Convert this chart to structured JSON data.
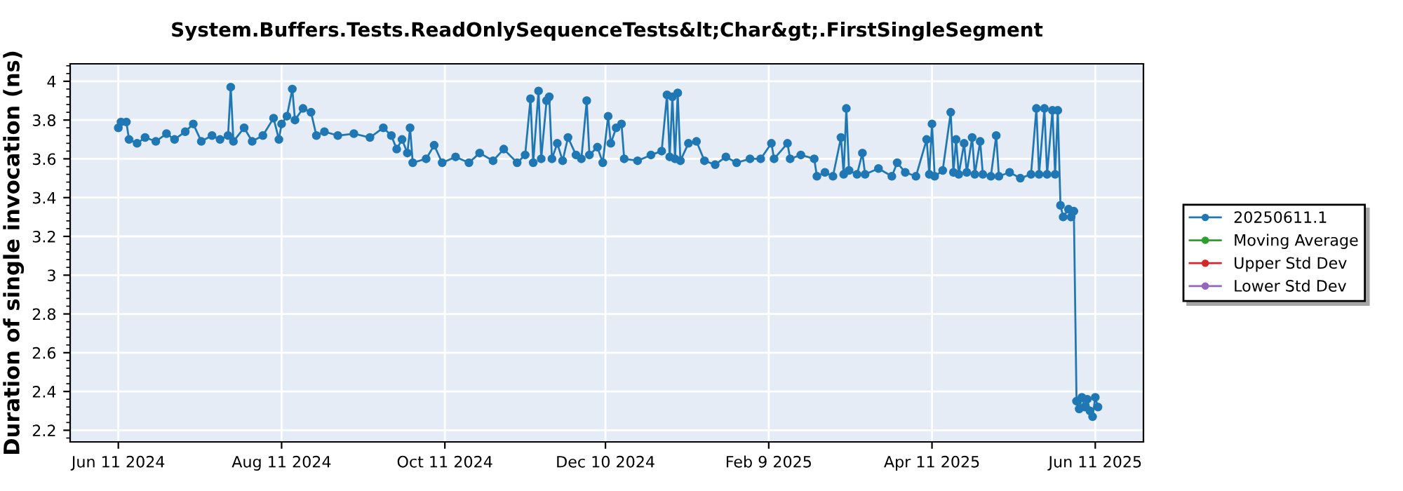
{
  "chart_data": {
    "type": "line",
    "title": "System.Buffers.Tests.ReadOnlySequenceTests&lt;Char&gt;.FirstSingleSegment",
    "ylabel": "Duration of single invocation (ns)",
    "xlim": [
      "2024-05-24",
      "2025-06-29"
    ],
    "xticks": [
      {
        "value": "2024-06-11",
        "label": "Jun 11 2024"
      },
      {
        "value": "2024-08-11",
        "label": "Aug 11 2024"
      },
      {
        "value": "2024-10-11",
        "label": "Oct 11 2024"
      },
      {
        "value": "2024-12-10",
        "label": "Dec 10 2024"
      },
      {
        "value": "2025-02-09",
        "label": "Feb 9 2025"
      },
      {
        "value": "2025-04-11",
        "label": "Apr 11 2025"
      },
      {
        "value": "2025-06-11",
        "label": "Jun 11 2025"
      }
    ],
    "ylim": [
      2.14,
      4.09
    ],
    "yticks": [
      2.2,
      2.4,
      2.6,
      2.8,
      3,
      3.2,
      3.4,
      3.6,
      3.8,
      4
    ],
    "grid": true,
    "legend": "right",
    "marker": "circle",
    "line_style": "solid",
    "series": [
      {
        "name": "20250611.1",
        "color": "#1f77b4",
        "x": [
          "2024-06-11",
          "2024-06-12",
          "2024-06-14",
          "2024-06-15",
          "2024-06-18",
          "2024-06-21",
          "2024-06-25",
          "2024-06-29",
          "2024-07-02",
          "2024-07-06",
          "2024-07-09",
          "2024-07-12",
          "2024-07-16",
          "2024-07-19",
          "2024-07-22",
          "2024-07-23",
          "2024-07-24",
          "2024-07-28",
          "2024-07-31",
          "2024-08-04",
          "2024-08-08",
          "2024-08-10",
          "2024-08-11",
          "2024-08-13",
          "2024-08-15",
          "2024-08-16",
          "2024-08-19",
          "2024-08-22",
          "2024-08-24",
          "2024-08-27",
          "2024-09-01",
          "2024-09-07",
          "2024-09-13",
          "2024-09-18",
          "2024-09-21",
          "2024-09-23",
          "2024-09-25",
          "2024-09-27",
          "2024-09-28",
          "2024-09-29",
          "2024-10-04",
          "2024-10-07",
          "2024-10-10",
          "2024-10-15",
          "2024-10-20",
          "2024-10-24",
          "2024-10-29",
          "2024-11-02",
          "2024-11-07",
          "2024-11-10",
          "2024-11-12",
          "2024-11-13",
          "2024-11-15",
          "2024-11-16",
          "2024-11-18",
          "2024-11-19",
          "2024-11-20",
          "2024-11-22",
          "2024-11-24",
          "2024-11-26",
          "2024-11-29",
          "2024-12-01",
          "2024-12-03",
          "2024-12-04",
          "2024-12-07",
          "2024-12-09",
          "2024-12-11",
          "2024-12-12",
          "2024-12-14",
          "2024-12-16",
          "2024-12-17",
          "2024-12-22",
          "2024-12-27",
          "2024-12-31",
          "2025-01-02",
          "2025-01-03",
          "2025-01-04",
          "2025-01-05",
          "2025-01-06",
          "2025-01-07",
          "2025-01-10",
          "2025-01-13",
          "2025-01-16",
          "2025-01-20",
          "2025-01-24",
          "2025-01-28",
          "2025-02-02",
          "2025-02-06",
          "2025-02-10",
          "2025-02-11",
          "2025-02-16",
          "2025-02-17",
          "2025-02-21",
          "2025-02-26",
          "2025-02-27",
          "2025-03-02",
          "2025-03-05",
          "2025-03-08",
          "2025-03-09",
          "2025-03-10",
          "2025-03-11",
          "2025-03-14",
          "2025-03-16",
          "2025-03-17",
          "2025-03-22",
          "2025-03-27",
          "2025-03-29",
          "2025-04-01",
          "2025-04-05",
          "2025-04-09",
          "2025-04-10",
          "2025-04-11",
          "2025-04-12",
          "2025-04-15",
          "2025-04-18",
          "2025-04-19",
          "2025-04-20",
          "2025-04-21",
          "2025-04-23",
          "2025-04-24",
          "2025-04-26",
          "2025-04-27",
          "2025-04-29",
          "2025-04-30",
          "2025-05-03",
          "2025-05-05",
          "2025-05-06",
          "2025-05-10",
          "2025-05-14",
          "2025-05-18",
          "2025-05-20",
          "2025-05-21",
          "2025-05-23",
          "2025-05-24",
          "2025-05-26",
          "2025-05-27",
          "2025-05-28",
          "2025-05-29",
          "2025-05-30",
          "2025-06-01",
          "2025-06-02",
          "2025-06-03",
          "2025-06-04",
          "2025-06-05",
          "2025-06-06",
          "2025-06-07",
          "2025-06-08",
          "2025-06-09",
          "2025-06-10",
          "2025-06-11",
          "2025-06-12"
        ],
        "values": [
          3.76,
          3.79,
          3.79,
          3.7,
          3.68,
          3.71,
          3.69,
          3.73,
          3.7,
          3.74,
          3.78,
          3.69,
          3.72,
          3.7,
          3.72,
          3.97,
          3.69,
          3.76,
          3.69,
          3.72,
          3.81,
          3.7,
          3.78,
          3.82,
          3.96,
          3.8,
          3.86,
          3.84,
          3.72,
          3.74,
          3.72,
          3.73,
          3.71,
          3.76,
          3.72,
          3.65,
          3.7,
          3.63,
          3.76,
          3.58,
          3.6,
          3.67,
          3.58,
          3.61,
          3.58,
          3.63,
          3.59,
          3.65,
          3.58,
          3.62,
          3.91,
          3.58,
          3.95,
          3.6,
          3.9,
          3.92,
          3.6,
          3.68,
          3.59,
          3.71,
          3.62,
          3.6,
          3.9,
          3.62,
          3.66,
          3.58,
          3.82,
          3.68,
          3.76,
          3.78,
          3.6,
          3.59,
          3.62,
          3.64,
          3.93,
          3.61,
          3.92,
          3.6,
          3.94,
          3.59,
          3.68,
          3.69,
          3.59,
          3.57,
          3.61,
          3.58,
          3.6,
          3.6,
          3.68,
          3.6,
          3.68,
          3.6,
          3.62,
          3.6,
          3.51,
          3.53,
          3.51,
          3.71,
          3.52,
          3.86,
          3.54,
          3.52,
          3.63,
          3.52,
          3.55,
          3.51,
          3.58,
          3.53,
          3.51,
          3.7,
          3.52,
          3.78,
          3.51,
          3.54,
          3.84,
          3.53,
          3.7,
          3.52,
          3.68,
          3.53,
          3.71,
          3.52,
          3.69,
          3.52,
          3.51,
          3.72,
          3.51,
          3.53,
          3.5,
          3.52,
          3.86,
          3.52,
          3.86,
          3.52,
          3.85,
          3.52,
          3.85,
          3.36,
          3.3,
          3.34,
          3.3,
          3.33,
          2.35,
          2.31,
          2.37,
          2.32,
          2.36,
          2.3,
          2.27,
          2.37,
          2.32
        ]
      },
      {
        "name": "Moving Average",
        "color": "#2ca02c"
      },
      {
        "name": "Upper Std Dev",
        "color": "#d62728"
      },
      {
        "name": "Lower Std Dev",
        "color": "#9467bd"
      }
    ]
  }
}
